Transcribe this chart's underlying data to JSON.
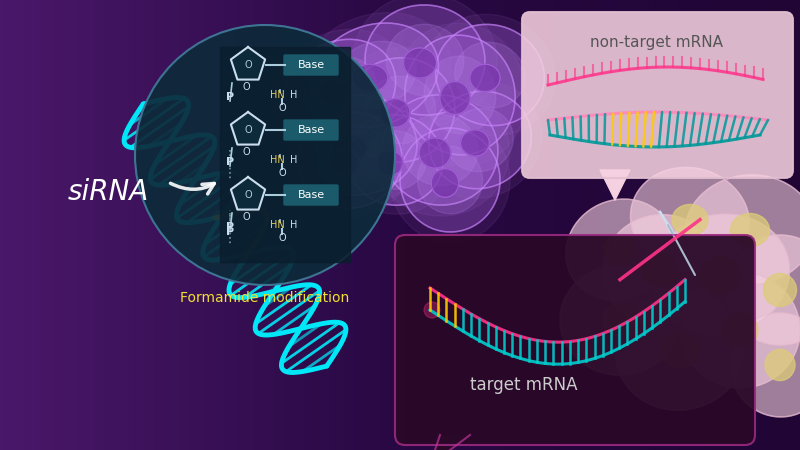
{
  "bg_color": "#2d0a45",
  "bg_left_color": "#4a1a6a",
  "sirna_label": "siRNA",
  "sirna_label_color": "#ffffff",
  "sirna_label_fontsize": 20,
  "dna_cyan_color": "#00e8f8",
  "dna_yellow_color": "#f0e030",
  "target_mrna_label": "target mRNA",
  "target_mrna_label_color": "#cccccc",
  "target_mrna_label_fontsize": 12,
  "nontarget_mrna_label": "non-target mRNA",
  "nontarget_mrna_label_color": "#666666",
  "nontarget_mrna_label_fontsize": 11,
  "formamide_label": "Formamide modification",
  "formamide_label_color": "#f0e030",
  "formamide_label_fontsize": 10,
  "bubble_dark_bg": "#2a0828",
  "bubble_border_color": "#bb3399",
  "nontarget_bubble_bg": "#f5d0e0",
  "nontarget_bubble_border": "#ddbbcc",
  "circle_bg_color": "#0d2a3a",
  "circle_border_color": "#4a88aa",
  "base_box_color": "#1a5a6a",
  "mrna_pink_color": "#ff3388",
  "mrna_pink2_color": "#ff88bb",
  "mrna_cyan_color": "#00cccc",
  "mrna_teal_color": "#009999",
  "mrna_yellow_color": "#ffcc00",
  "cell_purple_color": "#aa66dd",
  "cell_purple_bg": "#cc99ff",
  "cell_pink_color": "#ffccee",
  "cell_pink_bg": "#ffddee",
  "cell_yellow_nucleus": "#ddcc88"
}
